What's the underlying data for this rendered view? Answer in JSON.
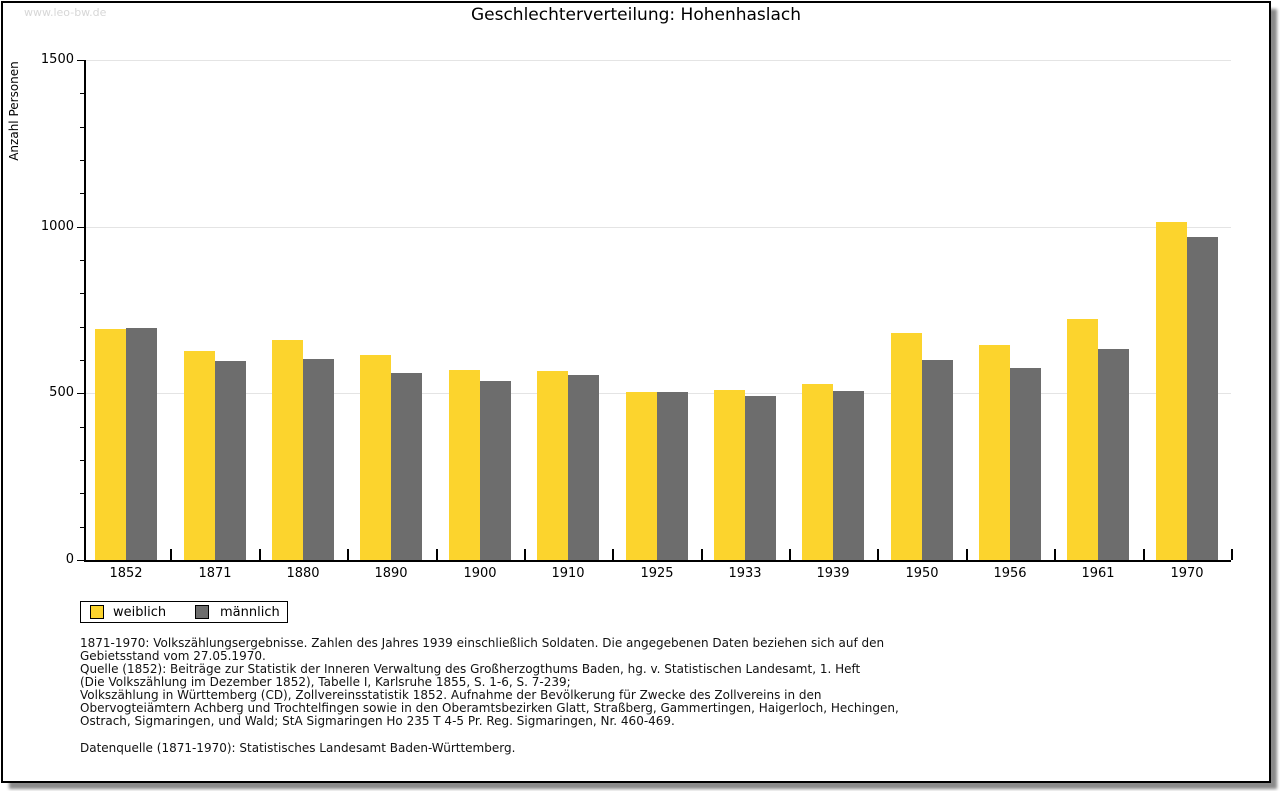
{
  "watermark": "www.leo-bw.de",
  "chart_data": {
    "type": "bar",
    "title": "Geschlechterverteilung: Hohenhaslach",
    "xlabel": "",
    "ylabel": "Anzahl Personen",
    "categories": [
      "1852",
      "1871",
      "1880",
      "1890",
      "1900",
      "1910",
      "1925",
      "1933",
      "1939",
      "1950",
      "1956",
      "1961",
      "1970"
    ],
    "series": [
      {
        "name": "weiblich",
        "color": "#FCD42D",
        "values": [
          693,
          626,
          660,
          616,
          571,
          568,
          503,
          510,
          527,
          680,
          645,
          724,
          1015
        ]
      },
      {
        "name": "männlich",
        "color": "#6D6D6D",
        "values": [
          697,
          596,
          604,
          562,
          538,
          554,
          505,
          493,
          507,
          601,
          575,
          632,
          970
        ]
      }
    ],
    "ylim": [
      0,
      1500
    ],
    "yticks": [
      0,
      500,
      1000,
      1500
    ],
    "minor_tick_step": 100,
    "grid": "horizontal-major-only",
    "legend_position": "bottom-left"
  },
  "footnotes": [
    "1871-1970: Volkszählungsergebnisse. Zahlen des Jahres 1939 einschließlich Soldaten. Die angegebenen Daten beziehen sich auf den",
    "Gebietsstand vom 27.05.1970.",
    "Quelle (1852): Beiträge zur Statistik der Inneren Verwaltung des Großherzogthums Baden, hg. v. Statistischen Landesamt, 1. Heft",
    "(Die Volkszählung im Dezember 1852), Tabelle I, Karlsruhe 1855, S. 1-6, S. 7-239;",
    "Volkszählung in Württemberg (CD), Zollvereinsstatistik 1852. Aufnahme der Bevölkerung für Zwecke des Zollvereins in den",
    "Obervogteiämtern Achberg und Trochtelfingen sowie in den Oberamtsbezirken Glatt, Straßberg, Gammertingen, Haigerloch, Hechingen,",
    "Ostrach, Sigmaringen, und Wald; StA Sigmaringen Ho 235 T 4-5 Pr. Reg. Sigmaringen, Nr. 460-469."
  ],
  "datasource": "Datenquelle (1871-1970): Statistisches Landesamt Baden-Württemberg."
}
